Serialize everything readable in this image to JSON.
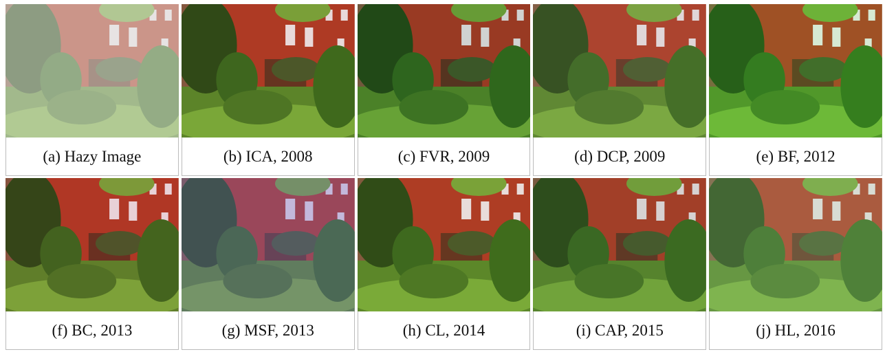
{
  "panels": [
    {
      "caption": "(a)  Hazy Image"
    },
    {
      "caption": "(b)  ICA, 2008"
    },
    {
      "caption": "(c) FVR, 2009"
    },
    {
      "caption": "(d)  DCP, 2009"
    },
    {
      "caption": "(e) BF, 2012"
    },
    {
      "caption": "(f)  BC, 2013"
    },
    {
      "caption": "(g)  MSF, 2013"
    },
    {
      "caption": "(h) CL, 2014"
    },
    {
      "caption": "(i) CAP, 2015"
    },
    {
      "caption": "(j) HL, 2016"
    }
  ]
}
